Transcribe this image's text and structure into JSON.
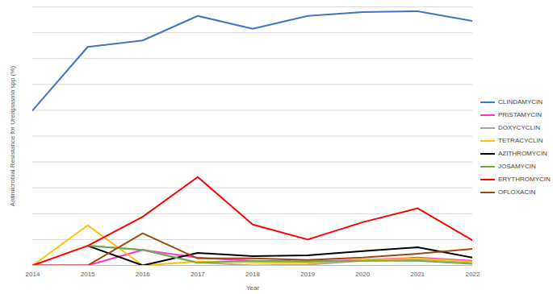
{
  "chart_data": {
    "type": "line",
    "x_label": "Year",
    "y_label": "Antimicrobial Resistance for Ureaplasma spp (%)",
    "x": [
      2014,
      2015,
      2016,
      2017,
      2018,
      2019,
      2020,
      2021,
      2022
    ],
    "xlim": [
      2014,
      2022
    ],
    "xticks": [
      2014,
      2015,
      2016,
      2017,
      2018,
      2019,
      2020,
      2021,
      2022
    ],
    "ylim": [
      0,
      100
    ],
    "yticks": [
      0,
      10,
      20,
      30,
      40,
      50,
      60,
      70,
      80,
      90,
      100
    ],
    "grid": true,
    "tick_labels": "x",
    "legend": "right",
    "series": [
      {
        "name": "CLINDAMYCIN",
        "color": "#4472c4",
        "values": [
          60,
          84.5,
          87,
          96.5,
          91.5,
          96.5,
          98,
          98.3,
          94.5
        ]
      },
      {
        "name": "PRISTAMYCIN",
        "color": "#ff33cc",
        "values": [
          0,
          0,
          6,
          3,
          1.8,
          1.5,
          2.1,
          3,
          1.8
        ]
      },
      {
        "name": "DOXYCYCLIN",
        "color": "#a5a5a5",
        "values": [
          null,
          7.6,
          6,
          1.2,
          0,
          0.3,
          1.8,
          2.4,
          1.2
        ]
      },
      {
        "name": "TETRACYCLIN",
        "color": "#ffc000",
        "values": [
          0,
          15.5,
          0,
          1.5,
          1.2,
          1,
          2,
          2.7,
          1.5
        ]
      },
      {
        "name": "AZITHROMYCIN",
        "color": "#000000",
        "values": [
          null,
          7.6,
          0,
          4.8,
          3.6,
          3.9,
          5.5,
          7,
          3
        ]
      },
      {
        "name": "JOSAMYCIN",
        "color": "#70ad47",
        "values": [
          null,
          7.6,
          6,
          1,
          1.8,
          1.5,
          1.8,
          1.8,
          0.6
        ]
      },
      {
        "name": "ERYTHROMYCIN",
        "color": "#ff0000",
        "values": [
          0,
          7.6,
          18.8,
          34.2,
          15.8,
          10,
          16.7,
          22.1,
          9.7
        ]
      },
      {
        "name": "OFLOXACIN",
        "color": "#9e480e",
        "values": [
          0,
          0,
          12.4,
          2.7,
          2.7,
          2.1,
          3,
          4.5,
          6.4
        ]
      }
    ]
  }
}
